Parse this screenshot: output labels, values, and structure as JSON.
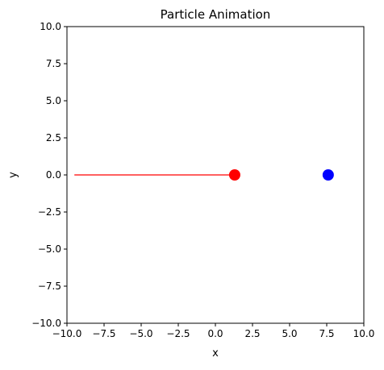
{
  "chart_data": {
    "type": "scatter",
    "title": "Particle Animation",
    "xlabel": "x",
    "ylabel": "y",
    "xlim": [
      -10,
      10
    ],
    "ylim": [
      -10,
      10
    ],
    "xticks": [
      -10,
      -7.5,
      -5,
      -2.5,
      0,
      2.5,
      5,
      7.5,
      10
    ],
    "yticks": [
      -10,
      -7.5,
      -5,
      -2.5,
      0,
      2.5,
      5,
      7.5,
      10
    ],
    "xtick_labels": [
      "−10.0",
      "−7.5",
      "−5.0",
      "−2.5",
      "0.0",
      "2.5",
      "5.0",
      "7.5",
      "10.0"
    ],
    "ytick_labels": [
      "−10.0",
      "−7.5",
      "−5.0",
      "−2.5",
      "0.0",
      "2.5",
      "5.0",
      "7.5",
      "10.0"
    ],
    "grid": false,
    "trail": {
      "color": "#ff0000",
      "x": [
        -9.5,
        1.3
      ],
      "y": [
        0,
        0
      ]
    },
    "series": [
      {
        "color": "#ff0000",
        "x": [
          1.3
        ],
        "y": [
          0
        ]
      },
      {
        "color": "#0000ff",
        "x": [
          7.6
        ],
        "y": [
          0
        ]
      }
    ]
  }
}
